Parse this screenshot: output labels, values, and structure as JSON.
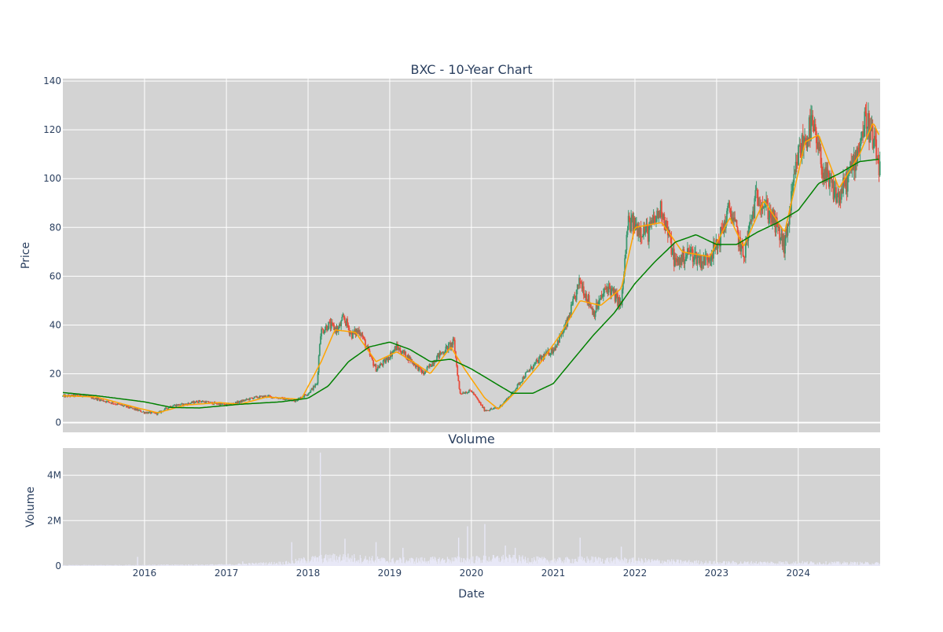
{
  "chart_data": [
    {
      "type": "candlestick",
      "title": "BXC - 10-Year Chart",
      "ylabel": "Price",
      "xlabel": "",
      "x_range": [
        "2015-01-01",
        "2025-01-01"
      ],
      "ylim": [
        -4,
        141
      ],
      "y_ticks": [
        0,
        20,
        40,
        60,
        80,
        100,
        120,
        140
      ],
      "grid": true,
      "background": "#d3d3d3",
      "colors": {
        "up": "#3d9970",
        "down": "#e74c3c",
        "ma_short": "#ffa500",
        "ma_long": "#008000"
      },
      "series": [
        {
          "kind": "close",
          "points": [
            [
              "2015-01-01",
              10.8
            ],
            [
              "2015-04-01",
              11.2
            ],
            [
              "2015-07-01",
              9.0
            ],
            [
              "2015-10-01",
              6.8
            ],
            [
              "2016-01-01",
              4.2
            ],
            [
              "2016-03-01",
              3.8
            ],
            [
              "2016-05-01",
              7.0
            ],
            [
              "2016-07-01",
              7.5
            ],
            [
              "2016-09-01",
              8.8
            ],
            [
              "2016-11-01",
              8.0
            ],
            [
              "2017-01-01",
              7.2
            ],
            [
              "2017-03-01",
              8.5
            ],
            [
              "2017-05-01",
              10.2
            ],
            [
              "2017-07-01",
              10.8
            ],
            [
              "2017-09-01",
              10.0
            ],
            [
              "2017-11-01",
              8.8
            ],
            [
              "2018-01-01",
              12.0
            ],
            [
              "2018-02-10",
              16.0
            ],
            [
              "2018-02-25",
              37.0
            ],
            [
              "2018-04-01",
              40.0
            ],
            [
              "2018-05-15",
              38.0
            ],
            [
              "2018-06-10",
              43.0
            ],
            [
              "2018-07-15",
              36.0
            ],
            [
              "2018-08-20",
              38.0
            ],
            [
              "2018-10-01",
              28.0
            ],
            [
              "2018-11-01",
              22.0
            ],
            [
              "2018-12-10",
              25.0
            ],
            [
              "2019-02-01",
              31.0
            ],
            [
              "2019-04-01",
              26.0
            ],
            [
              "2019-06-01",
              20.0
            ],
            [
              "2019-08-01",
              27.0
            ],
            [
              "2019-10-15",
              33.0
            ],
            [
              "2019-11-10",
              12.0
            ],
            [
              "2020-01-01",
              13.0
            ],
            [
              "2020-03-01",
              5.0
            ],
            [
              "2020-05-01",
              6.0
            ],
            [
              "2020-07-01",
              12.0
            ],
            [
              "2020-09-01",
              20.0
            ],
            [
              "2020-11-01",
              26.0
            ],
            [
              "2021-01-01",
              30.0
            ],
            [
              "2021-03-01",
              40.0
            ],
            [
              "2021-05-01",
              58.0
            ],
            [
              "2021-07-01",
              45.0
            ],
            [
              "2021-09-01",
              56.0
            ],
            [
              "2021-11-01",
              48.0
            ],
            [
              "2021-12-01",
              82.0
            ],
            [
              "2022-03-01",
              78.0
            ],
            [
              "2022-05-01",
              88.0
            ],
            [
              "2022-07-01",
              65.0
            ],
            [
              "2022-09-01",
              70.0
            ],
            [
              "2022-11-01",
              66.0
            ],
            [
              "2023-01-01",
              72.0
            ],
            [
              "2023-03-01",
              88.0
            ],
            [
              "2023-05-01",
              68.0
            ],
            [
              "2023-07-01",
              94.0
            ],
            [
              "2023-09-01",
              85.0
            ],
            [
              "2023-11-01",
              72.0
            ],
            [
              "2024-01-01",
              110.0
            ],
            [
              "2024-03-01",
              122.0
            ],
            [
              "2024-05-01",
              100.0
            ],
            [
              "2024-07-01",
              92.0
            ],
            [
              "2024-09-01",
              105.0
            ],
            [
              "2024-11-01",
              125.0
            ],
            [
              "2024-12-31",
              104.0
            ]
          ]
        },
        {
          "kind": "ma_short",
          "points": [
            [
              "2015-01-01",
              11.0
            ],
            [
              "2015-06-01",
              10.5
            ],
            [
              "2015-12-01",
              6.0
            ],
            [
              "2016-03-01",
              4.0
            ],
            [
              "2016-07-01",
              7.2
            ],
            [
              "2016-12-01",
              8.2
            ],
            [
              "2017-03-01",
              7.5
            ],
            [
              "2017-07-01",
              10.5
            ],
            [
              "2017-12-01",
              9.5
            ],
            [
              "2018-03-01",
              25.0
            ],
            [
              "2018-05-01",
              38.0
            ],
            [
              "2018-08-01",
              37.0
            ],
            [
              "2018-11-01",
              25.0
            ],
            [
              "2019-02-01",
              29.0
            ],
            [
              "2019-05-01",
              24.0
            ],
            [
              "2019-07-01",
              20.0
            ],
            [
              "2019-10-01",
              31.0
            ],
            [
              "2019-12-01",
              22.0
            ],
            [
              "2020-03-01",
              10.0
            ],
            [
              "2020-05-01",
              5.5
            ],
            [
              "2020-08-01",
              14.0
            ],
            [
              "2020-11-01",
              24.0
            ],
            [
              "2021-02-01",
              36.0
            ],
            [
              "2021-05-01",
              50.0
            ],
            [
              "2021-08-01",
              48.0
            ],
            [
              "2021-11-01",
              55.0
            ],
            [
              "2022-01-01",
              80.0
            ],
            [
              "2022-05-01",
              82.0
            ],
            [
              "2022-08-01",
              70.0
            ],
            [
              "2022-12-01",
              68.0
            ],
            [
              "2023-03-01",
              84.0
            ],
            [
              "2023-05-01",
              72.0
            ],
            [
              "2023-08-01",
              91.0
            ],
            [
              "2023-11-01",
              78.0
            ],
            [
              "2024-02-01",
              115.0
            ],
            [
              "2024-04-01",
              118.0
            ],
            [
              "2024-07-01",
              96.0
            ],
            [
              "2024-10-01",
              110.0
            ],
            [
              "2024-12-01",
              123.0
            ],
            [
              "2024-12-31",
              117.0
            ]
          ]
        },
        {
          "kind": "ma_long",
          "points": [
            [
              "2015-01-01",
              12.3
            ],
            [
              "2015-06-01",
              11.0
            ],
            [
              "2016-01-01",
              8.5
            ],
            [
              "2016-05-01",
              6.2
            ],
            [
              "2016-09-01",
              6.0
            ],
            [
              "2017-03-01",
              7.5
            ],
            [
              "2017-09-01",
              8.5
            ],
            [
              "2018-01-01",
              10.0
            ],
            [
              "2018-04-01",
              15.0
            ],
            [
              "2018-07-01",
              25.0
            ],
            [
              "2018-10-01",
              31.0
            ],
            [
              "2019-01-01",
              33.0
            ],
            [
              "2019-04-01",
              30.0
            ],
            [
              "2019-07-01",
              25.0
            ],
            [
              "2019-10-01",
              26.0
            ],
            [
              "2020-01-01",
              22.0
            ],
            [
              "2020-04-01",
              17.0
            ],
            [
              "2020-07-01",
              12.0
            ],
            [
              "2020-10-01",
              12.0
            ],
            [
              "2021-01-01",
              16.0
            ],
            [
              "2021-04-01",
              26.0
            ],
            [
              "2021-07-01",
              36.0
            ],
            [
              "2021-10-01",
              45.0
            ],
            [
              "2022-01-01",
              57.0
            ],
            [
              "2022-04-01",
              66.0
            ],
            [
              "2022-07-01",
              74.0
            ],
            [
              "2022-10-01",
              77.0
            ],
            [
              "2023-01-01",
              73.0
            ],
            [
              "2023-04-01",
              73.0
            ],
            [
              "2023-07-01",
              78.0
            ],
            [
              "2023-10-01",
              82.0
            ],
            [
              "2024-01-01",
              87.0
            ],
            [
              "2024-04-01",
              98.0
            ],
            [
              "2024-07-01",
              102.0
            ],
            [
              "2024-10-01",
              107.0
            ],
            [
              "2024-12-31",
              108.0
            ]
          ]
        }
      ]
    },
    {
      "type": "bar",
      "title": "Volume",
      "xlabel": "Date",
      "ylabel": "Volume",
      "x_range": [
        "2015-01-01",
        "2025-01-01"
      ],
      "ylim": [
        0,
        5200000
      ],
      "y_ticks": [
        0,
        2000000,
        4000000
      ],
      "y_tick_labels": [
        "0",
        "2M",
        "4M"
      ],
      "x_tick_dates": [
        "2016-01-01",
        "2017-01-01",
        "2018-01-01",
        "2019-01-01",
        "2020-01-01",
        "2021-01-01",
        "2022-01-01",
        "2023-01-01",
        "2024-01-01"
      ],
      "x_tick_labels": [
        "2016",
        "2017",
        "2018",
        "2019",
        "2020",
        "2021",
        "2022",
        "2023",
        "2024"
      ],
      "grid": true,
      "background": "#d3d3d3",
      "bar_color": "#e8e8f7",
      "baseline": [
        [
          "2015-01-01",
          30000
        ],
        [
          "2016-01-01",
          40000
        ],
        [
          "2017-01-01",
          60000
        ],
        [
          "2017-10-01",
          150000
        ],
        [
          "2018-01-01",
          300000
        ],
        [
          "2018-06-01",
          400000
        ],
        [
          "2019-01-01",
          250000
        ],
        [
          "2020-01-01",
          300000
        ],
        [
          "2020-06-01",
          350000
        ],
        [
          "2021-01-01",
          250000
        ],
        [
          "2021-06-01",
          300000
        ],
        [
          "2022-01-01",
          250000
        ],
        [
          "2023-01-01",
          150000
        ],
        [
          "2024-01-01",
          150000
        ],
        [
          "2024-12-31",
          120000
        ]
      ],
      "spikes": [
        [
          "2015-12-01",
          400000
        ],
        [
          "2017-03-15",
          200000
        ],
        [
          "2017-10-20",
          1050000
        ],
        [
          "2018-02-25",
          5000000
        ],
        [
          "2018-06-15",
          1200000
        ],
        [
          "2018-11-01",
          1050000
        ],
        [
          "2019-03-01",
          800000
        ],
        [
          "2019-11-05",
          1250000
        ],
        [
          "2019-12-15",
          1750000
        ],
        [
          "2020-03-01",
          1850000
        ],
        [
          "2020-06-01",
          900000
        ],
        [
          "2020-07-15",
          800000
        ],
        [
          "2021-05-01",
          1250000
        ],
        [
          "2021-11-01",
          850000
        ]
      ]
    }
  ]
}
